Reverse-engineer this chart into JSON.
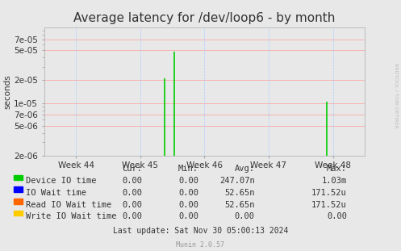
{
  "title": "Average latency for /dev/loop6 - by month",
  "ylabel": "seconds",
  "xlabel_ticks": [
    "Week 44",
    "Week 45",
    "Week 46",
    "Week 47",
    "Week 48"
  ],
  "x_positions": [
    0,
    1,
    2,
    3,
    4
  ],
  "background_color": "#e8e8e8",
  "plot_background_color": "#e8e8e8",
  "grid_color_h": "#ff9999",
  "grid_color_v": "#aaccff",
  "ymin": 2e-06,
  "ymax": 0.0001,
  "yticks": [
    2e-06,
    5e-06,
    7e-06,
    1e-05,
    2e-05,
    5e-05,
    7e-05
  ],
  "ytick_labels": [
    "2e-06",
    "5e-06",
    "7e-06",
    "1e-05",
    "2e-05",
    "5e-05",
    "7e-05"
  ],
  "series": [
    {
      "name": "Device IO time",
      "color": "#00cc00"
    },
    {
      "name": "IO Wait time",
      "color": "#0000ff"
    },
    {
      "name": "Read IO Wait time",
      "color": "#ff6600"
    },
    {
      "name": "Write IO Wait time",
      "color": "#ffcc00"
    }
  ],
  "spikes_device": [
    {
      "x": 1.38,
      "ymax": 2.1e-05
    },
    {
      "x": 1.53,
      "ymax": 4.8e-05
    },
    {
      "x": 3.9,
      "ymax": 1.05e-05
    }
  ],
  "spikes_read": [
    {
      "x": 1.38,
      "ymax": 2e-06
    },
    {
      "x": 1.53,
      "ymax": 2e-06
    },
    {
      "x": 3.9,
      "ymax": 2e-06
    }
  ],
  "legend_table": {
    "headers": [
      "",
      "Cur:",
      "Min:",
      "Avg:",
      "Max:"
    ],
    "rows": [
      [
        "Device IO time",
        "0.00",
        "0.00",
        "247.07n",
        "1.03m"
      ],
      [
        "IO Wait time",
        "0.00",
        "0.00",
        "52.65n",
        "171.52u"
      ],
      [
        "Read IO Wait time",
        "0.00",
        "0.00",
        "52.65n",
        "171.52u"
      ],
      [
        "Write IO Wait time",
        "0.00",
        "0.00",
        "0.00",
        "0.00"
      ]
    ]
  },
  "footer": "Last update: Sat Nov 30 05:00:13 2024",
  "munin_version": "Munin 2.0.57",
  "watermark": "RRDTOOL / TOBI OETIKER",
  "title_fontsize": 11,
  "axis_fontsize": 7.5,
  "legend_fontsize": 7.5
}
